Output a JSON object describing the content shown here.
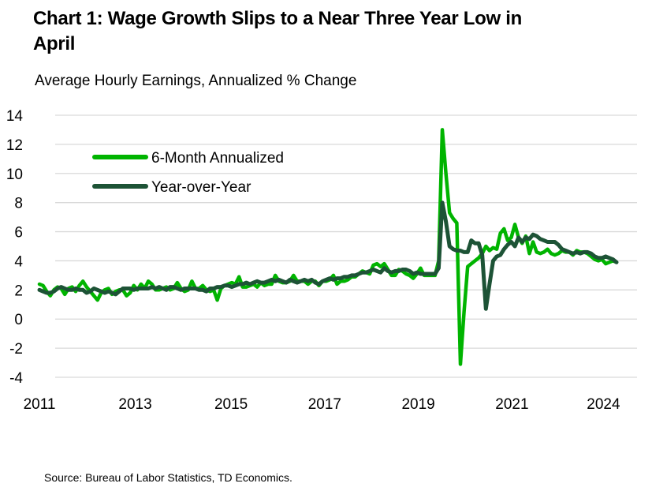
{
  "chart_data": {
    "type": "line",
    "title": "Chart 1: Wage Growth Slips to a Near Three Year Low in April",
    "subtitle": "Average Hourly Earnings, Annualized % Change",
    "source": "Source: Bureau of Labor Statistics, TD Economics.",
    "xlabel": "",
    "ylabel": "",
    "start": "2011-01",
    "frequency": "monthly",
    "xlim": [
      2011.0,
      2024.25
    ],
    "ylim": [
      -4,
      14
    ],
    "yticks": [
      14,
      12,
      10,
      8,
      6,
      4,
      2,
      0,
      -2,
      -4
    ],
    "xticks": [
      {
        "label": "2011",
        "at": 2011.0
      },
      {
        "label": "2013",
        "at": 2013.2
      },
      {
        "label": "2015",
        "at": 2015.4
      },
      {
        "label": "2017",
        "at": 2017.55
      },
      {
        "label": "2019",
        "at": 2019.7
      },
      {
        "label": "2021",
        "at": 2021.85
      },
      {
        "label": "2024",
        "at": 2023.95
      }
    ],
    "grid": true,
    "legend_position": "top-left",
    "series": [
      {
        "name": "6-Month Annualized",
        "color": "#00b400",
        "values": [
          2.4,
          2.3,
          1.9,
          1.6,
          2.0,
          2.2,
          2.1,
          1.7,
          2.1,
          2.2,
          1.9,
          2.3,
          2.6,
          2.2,
          1.9,
          1.6,
          1.3,
          1.8,
          2.0,
          2.1,
          1.7,
          1.9,
          2.0,
          2.0,
          1.6,
          1.8,
          2.3,
          2.0,
          2.4,
          2.1,
          2.6,
          2.4,
          2.0,
          2.0,
          2.1,
          2.2,
          2.0,
          2.1,
          2.5,
          2.1,
          1.9,
          2.0,
          2.6,
          2.1,
          2.1,
          2.3,
          2.0,
          1.9,
          2.0,
          1.3,
          2.1,
          2.3,
          2.4,
          2.5,
          2.4,
          2.9,
          2.2,
          2.2,
          2.3,
          2.4,
          2.2,
          2.5,
          2.3,
          2.4,
          2.4,
          3.0,
          2.6,
          2.5,
          2.5,
          2.6,
          3.0,
          2.6,
          2.6,
          2.6,
          2.4,
          2.6,
          2.6,
          2.3,
          2.6,
          2.6,
          2.7,
          3.0,
          2.4,
          2.6,
          2.6,
          2.7,
          2.9,
          2.9,
          3.1,
          3.3,
          3.2,
          3.1,
          3.7,
          3.8,
          3.6,
          3.8,
          3.4,
          3.0,
          3.0,
          3.4,
          3.3,
          3.1,
          3.0,
          2.8,
          3.1,
          3.5,
          3.0,
          3.0,
          3.0,
          3.0,
          4.0,
          13.0,
          10.0,
          7.3,
          6.9,
          6.6,
          -3.1,
          0.5,
          3.6,
          3.8,
          4.0,
          4.2,
          4.5,
          5.0,
          4.7,
          4.9,
          4.8,
          5.9,
          6.2,
          5.4,
          5.6,
          6.5,
          5.6,
          5.2,
          5.7,
          4.5,
          5.3,
          4.6,
          4.5,
          4.6,
          4.8,
          4.5,
          4.4,
          4.5,
          4.7,
          4.6,
          4.6,
          4.4,
          4.7,
          4.6,
          4.6,
          4.5,
          4.3,
          4.1,
          4.0,
          4.1,
          3.8,
          3.9,
          4.0,
          3.9
        ]
      },
      {
        "name": "Year-over-Year",
        "color": "#1d5336",
        "values": [
          2.0,
          1.9,
          1.8,
          1.8,
          1.9,
          2.1,
          2.2,
          2.1,
          2.0,
          2.0,
          2.1,
          2.0,
          2.0,
          1.8,
          1.9,
          2.1,
          2.0,
          1.9,
          1.8,
          1.9,
          1.8,
          1.7,
          1.9,
          2.1,
          2.1,
          2.1,
          2.0,
          2.1,
          2.1,
          2.1,
          2.1,
          2.2,
          2.1,
          2.2,
          2.1,
          2.0,
          2.2,
          2.2,
          2.1,
          2.0,
          2.1,
          2.1,
          2.1,
          2.1,
          2.0,
          2.0,
          1.9,
          2.1,
          2.1,
          2.2,
          2.2,
          2.3,
          2.3,
          2.2,
          2.3,
          2.4,
          2.4,
          2.5,
          2.4,
          2.5,
          2.6,
          2.5,
          2.5,
          2.6,
          2.7,
          2.6,
          2.7,
          2.6,
          2.5,
          2.7,
          2.6,
          2.5,
          2.6,
          2.7,
          2.6,
          2.7,
          2.5,
          2.4,
          2.6,
          2.7,
          2.8,
          2.7,
          2.8,
          2.8,
          2.9,
          2.9,
          3.0,
          3.0,
          3.1,
          3.2,
          3.2,
          3.3,
          3.4,
          3.3,
          3.2,
          3.5,
          3.3,
          3.2,
          3.3,
          3.3,
          3.4,
          3.4,
          3.3,
          3.1,
          3.2,
          3.1,
          3.1,
          3.1,
          3.1,
          3.1,
          3.5,
          8.0,
          6.7,
          5.0,
          4.8,
          4.7,
          4.7,
          4.6,
          4.6,
          5.4,
          5.2,
          5.2,
          4.4,
          0.7,
          2.4,
          4.0,
          4.3,
          4.4,
          4.8,
          5.1,
          5.3,
          5.0,
          5.6,
          5.3,
          5.6,
          5.5,
          5.8,
          5.7,
          5.5,
          5.4,
          5.3,
          5.3,
          5.3,
          5.1,
          4.8,
          4.7,
          4.6,
          4.5,
          4.6,
          4.5,
          4.6,
          4.6,
          4.5,
          4.3,
          4.2,
          4.2,
          4.3,
          4.2,
          4.1,
          3.9
        ]
      }
    ]
  }
}
